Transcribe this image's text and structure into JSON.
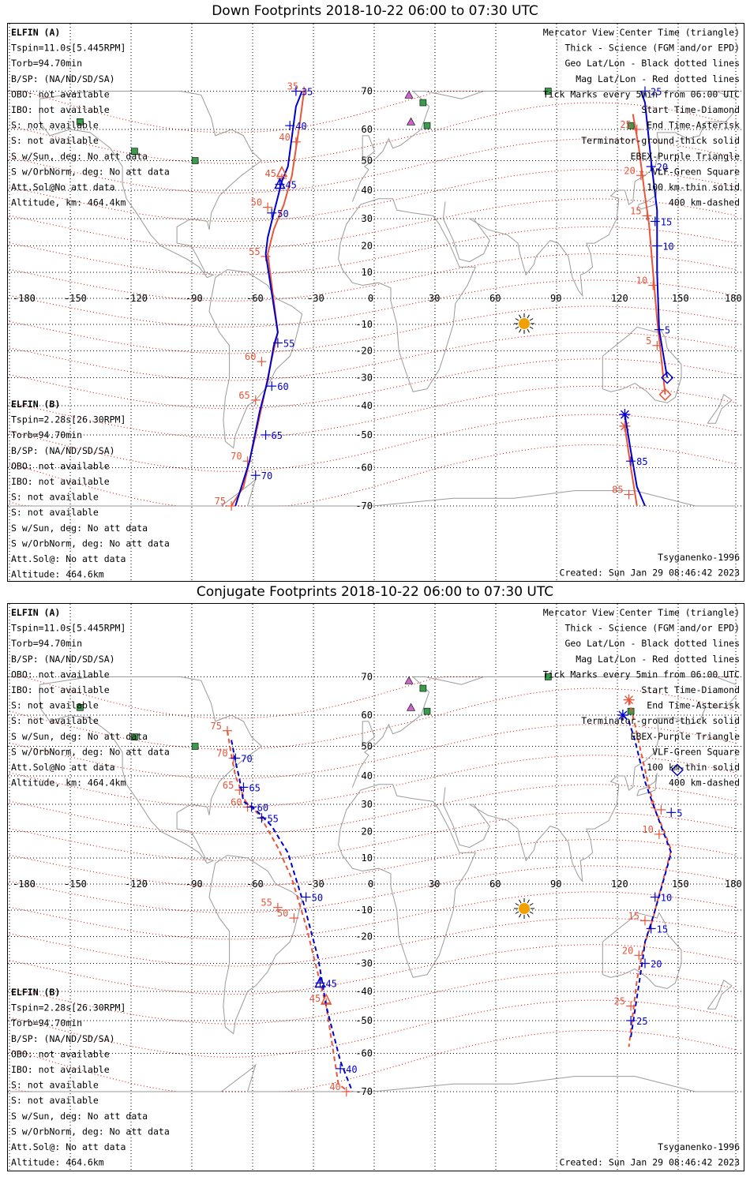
{
  "colors": {
    "elfin_a": "#0000cc",
    "elfin_b": "#e8553a",
    "geo_grid": "#000000",
    "mag_grid": "#dd0000",
    "magnetic_meridian": "#cc44cc",
    "coast": "#9a9a9a",
    "vlf_square": "#3a9b4a",
    "ebex_triangle": "#cc66cc",
    "sun": "#f0a000"
  },
  "icons": {
    "sun": "sun-icon",
    "vlf": "square-marker-icon",
    "ebex": "triangle-marker-icon"
  },
  "panels": [
    {
      "title": "Down Footprints 2018-10-22 06:00 to 07:30 UTC",
      "left_a": [
        "ELFIN (A)",
        "Tspin=11.0s[5.445RPM]",
        "Torb=94.70min",
        "B/SP: (NA/ND/SD/SA)",
        "OBO: not available",
        "IBO: not available",
        "S: not available",
        "S: not available",
        "S w/Sun, deg: No att data",
        "S w/OrbNorm, deg: No att data",
        "Att.Sol@No att data",
        "Altitude, km: 464.4km"
      ],
      "left_b": [
        "ELFIN (B)",
        "Tspin=2.28s[26.30RPM]",
        "Torb=94.70min",
        "B/SP: (NA/ND/SD/SA)",
        "OBO: not available",
        "IBO: not available",
        "S: not available",
        "S: not available",
        "S w/Sun, deg: No att data",
        "S w/OrbNorm, deg: No att data",
        "Att.Sol@: No att data",
        "Altitude: 464.6km"
      ],
      "right": [
        "Mercator View Center Time (triangle)",
        "Thick - Science (FGM and/or EPD)",
        "Geo Lat/Lon - Black dotted lines",
        "Mag Lat/Lon - Red dotted lines",
        "Tick Marks every 5min from 06:00 UTC",
        "Start Time-Diamond",
        "End Time-Asterisk",
        "Terminator-ground-thick solid",
        "EBEX-Purple Triangle",
        "VLF-Green Square",
        "100 km-thin solid",
        "400 km-dashed"
      ],
      "bottom_right": [
        "Tsyganenko-1996",
        "Created: Sun Jan 29 08:46:42 2023"
      ],
      "lon_labels": [
        "-180",
        "-150",
        "-120",
        "-90",
        "-60",
        "-30",
        "0",
        "30",
        "60",
        "90",
        "120",
        "150",
        "180"
      ],
      "lat_labels": [
        "70",
        "60",
        "50",
        "40",
        "30",
        "20",
        "10",
        "-10",
        "-20",
        "-30",
        "-40",
        "-50",
        "-60",
        "-70"
      ],
      "track_a_1": {
        "points": [
          [
            -35,
            78
          ],
          [
            -38,
            66
          ],
          [
            -42,
            48
          ],
          [
            -45,
            43
          ],
          [
            -49,
            32
          ],
          [
            -52,
            23
          ],
          [
            -53,
            17
          ],
          [
            -47,
            -13
          ],
          [
            -49,
            -18
          ],
          [
            -52,
            -31
          ],
          [
            -56,
            -42
          ],
          [
            -61,
            -58
          ],
          [
            -68,
            -74
          ]
        ],
        "ticks": [
          {
            "lon": -38,
            "lat": 73,
            "label": "35"
          },
          {
            "lon": -41,
            "lat": 61,
            "label": "40"
          },
          {
            "lon": -46,
            "lat": 42,
            "label": "45"
          },
          {
            "lon": -50,
            "lat": 32,
            "label": "50"
          },
          {
            "lon": -47,
            "lat": -17,
            "label": "55"
          },
          {
            "lon": -50,
            "lat": -33,
            "label": "60"
          },
          {
            "lon": -53,
            "lat": -50,
            "label": "65"
          },
          {
            "lon": -58,
            "lat": -62,
            "label": "70"
          }
        ]
      },
      "track_b_1": {
        "points": [
          [
            -34,
            77
          ],
          [
            -36,
            62
          ],
          [
            -40,
            45
          ],
          [
            -44,
            35
          ],
          [
            -49,
            26
          ],
          [
            -52,
            17
          ],
          [
            -47,
            -13
          ],
          [
            -50,
            -23
          ],
          [
            -54,
            -37
          ],
          [
            -58,
            -50
          ],
          [
            -64,
            -65
          ],
          [
            -70,
            -76
          ]
        ],
        "ticks": [
          {
            "lon": -34,
            "lat": 77,
            "label": "35"
          },
          {
            "lon": -38,
            "lat": 56,
            "label": "40"
          },
          {
            "lon": -45,
            "lat": 44,
            "label": "45"
          },
          {
            "lon": -52,
            "lat": 34,
            "label": "50"
          },
          {
            "lon": -53,
            "lat": 16,
            "label": "55"
          },
          {
            "lon": -55,
            "lat": -24,
            "label": "60"
          },
          {
            "lon": -58,
            "lat": -38,
            "label": "65"
          },
          {
            "lon": -62,
            "lat": -58,
            "label": "70"
          },
          {
            "lon": -70,
            "lat": -76,
            "label": "75"
          }
        ]
      },
      "track_a_2": {
        "points": [
          [
            133,
            77
          ],
          [
            135,
            67
          ],
          [
            138,
            50
          ],
          [
            141,
            33
          ],
          [
            141,
            10
          ],
          [
            142,
            -12
          ],
          [
            146,
            -30
          ]
        ],
        "ticks": [
          {
            "lon": 135,
            "lat": 70,
            "label": "25"
          },
          {
            "lon": 138,
            "lat": 48,
            "label": "20"
          },
          {
            "lon": 140,
            "lat": 29,
            "label": "15"
          },
          {
            "lon": 141,
            "lat": 20,
            "label": "10"
          },
          {
            "lon": 142,
            "lat": -12,
            "label": "5"
          }
        ],
        "start": {
          "lon": 146,
          "lat": -30
        }
      },
      "track_b_2": {
        "points": [
          [
            129,
            64
          ],
          [
            132,
            54
          ],
          [
            135,
            38
          ],
          [
            137,
            28
          ],
          [
            139,
            10
          ],
          [
            141,
            -8
          ],
          [
            145,
            -36
          ]
        ],
        "ticks": [
          {
            "lon": 131,
            "lat": 60,
            "label": "25"
          },
          {
            "lon": 133,
            "lat": 45,
            "label": "20"
          },
          {
            "lon": 136,
            "lat": 31,
            "label": "15"
          },
          {
            "lon": 139,
            "lat": 5,
            "label": "10"
          },
          {
            "lon": 141,
            "lat": -18,
            "label": "5"
          }
        ],
        "start": {
          "lon": 145,
          "lat": -36
        }
      },
      "track_a_3": {
        "points": [
          [
            125,
            -43
          ],
          [
            128,
            -55
          ],
          [
            131,
            -65
          ],
          [
            135,
            -75
          ]
        ],
        "ticks": [
          {
            "lon": 128,
            "lat": -58,
            "label": "85"
          }
        ],
        "end": {
          "lon": 125,
          "lat": -43
        }
      },
      "track_b_3": {
        "points": [
          [
            125,
            -47
          ],
          [
            128,
            -60
          ],
          [
            131,
            -70
          ]
        ],
        "ticks": [
          {
            "lon": 127,
            "lat": -67,
            "label": "85"
          }
        ],
        "end": {
          "lon": 125,
          "lat": -47
        }
      },
      "center_a": {
        "lon": -46,
        "lat": 42
      },
      "center_b": {
        "lon": -45,
        "lat": 46
      }
    },
    {
      "title": "Conjugate Footprints 2018-10-22 06:00 to 07:30 UTC",
      "left_a": [
        "ELFIN (A)",
        "Tspin=11.0s[5.445RPM]",
        "Torb=94.70min",
        "B/SP: (NA/ND/SD/SA)",
        "OBO: not available",
        "IBO: not available",
        "S: not available",
        "S: not available",
        "S w/Sun, deg: No att data",
        "S w/OrbNorm, deg: No att data",
        "Att.Sol@No att data",
        "Altitude, km: 464.4km"
      ],
      "left_b": [
        "ELFIN (B)",
        "Tspin=2.28s[26.30RPM]",
        "Torb=94.70min",
        "B/SP: (NA/ND/SD/SA)",
        "OBO: not available",
        "IBO: not available",
        "S: not available",
        "S: not available",
        "S w/Sun, deg: No att data",
        "S w/OrbNorm, deg: No att data",
        "Att.Sol@: No att data",
        "Altitude: 464.6km"
      ],
      "right": [
        "Mercator View Center Time (triangle)",
        "Thick - Science (FGM and/or EPD)",
        "Geo Lat/Lon - Black dotted lines",
        "Mag Lat/Lon - Red dotted lines",
        "Tick Marks every 5min from 06:00 UTC",
        "Start Time-Diamond",
        "End Time-Asterisk",
        "Terminator-ground-thick solid",
        "EBEX-Purple Triangle",
        "VLF-Green Square",
        "100 km-thin solid",
        "400 km-dashed"
      ],
      "bottom_right": [
        "Tsyganenko-1996",
        "Created: Sun Jan 29 08:46:42 2023"
      ],
      "lon_labels": [
        "-180",
        "-150",
        "-120",
        "-90",
        "-60",
        "-30",
        "0",
        "30",
        "60",
        "90",
        "120",
        "150",
        "180"
      ],
      "lat_labels": [
        "70",
        "60",
        "50",
        "40",
        "30",
        "20",
        "10",
        "-10",
        "-20",
        "-30",
        "-40",
        "-50",
        "-60",
        "-70"
      ],
      "track_a_1": {
        "points": [
          [
            -70,
            52
          ],
          [
            -68,
            45
          ],
          [
            -66,
            39
          ],
          [
            -64,
            31
          ],
          [
            -58,
            28
          ],
          [
            -50,
            22
          ],
          [
            -42,
            12
          ],
          [
            -34,
            -8
          ],
          [
            -27,
            -28
          ],
          [
            -23,
            -45
          ],
          [
            -16,
            -62
          ],
          [
            -10,
            -74
          ]
        ],
        "ticks": [
          {
            "lon": -68,
            "lat": 46,
            "label": "70"
          },
          {
            "lon": -64,
            "lat": 36,
            "label": "65"
          },
          {
            "lon": -60,
            "lat": 29,
            "label": "60"
          },
          {
            "lon": -55,
            "lat": 25,
            "label": "55"
          },
          {
            "lon": -33,
            "lat": -5,
            "label": "50"
          },
          {
            "lon": -26,
            "lat": -37,
            "label": "45"
          },
          {
            "lon": -16,
            "lat": -64,
            "label": "40"
          }
        ]
      },
      "track_b_1": {
        "points": [
          [
            -72,
            55
          ],
          [
            -70,
            47
          ],
          [
            -68,
            40
          ],
          [
            -63,
            31
          ],
          [
            -56,
            26
          ],
          [
            -47,
            14
          ],
          [
            -40,
            2
          ],
          [
            -33,
            -16
          ],
          [
            -27,
            -34
          ],
          [
            -23,
            -45
          ],
          [
            -17,
            -68
          ],
          [
            -12,
            -78
          ]
        ],
        "ticks": [
          {
            "lon": -72,
            "lat": 55,
            "label": "75"
          },
          {
            "lon": -69,
            "lat": 46,
            "label": "70"
          },
          {
            "lon": -66,
            "lat": 35,
            "label": "65"
          },
          {
            "lon": -62,
            "lat": 29,
            "label": "60"
          },
          {
            "lon": -47,
            "lat": -9,
            "label": "55"
          },
          {
            "lon": -39,
            "lat": -13,
            "label": "50"
          },
          {
            "lon": -23,
            "lat": -44,
            "label": "45"
          },
          {
            "lon": -13,
            "lat": -72,
            "label": "40"
          }
        ]
      },
      "track_a_2": {
        "points": [
          [
            124,
            60
          ],
          [
            127,
            58
          ],
          [
            130,
            52
          ],
          [
            135,
            38
          ],
          [
            139,
            30
          ],
          [
            144,
            20
          ],
          [
            148,
            12
          ],
          [
            140,
            -10
          ],
          [
            138,
            -15
          ],
          [
            135,
            -22
          ],
          [
            134,
            -28
          ],
          [
            128,
            -55
          ]
        ],
        "ticks": [
          {
            "lon": 148,
            "lat": 27,
            "label": "5"
          },
          {
            "lon": 140,
            "lat": -5,
            "label": "10"
          },
          {
            "lon": 138,
            "lat": -17,
            "label": "15"
          },
          {
            "lon": 135,
            "lat": -30,
            "label": "20"
          },
          {
            "lon": 128,
            "lat": -50,
            "label": "25"
          }
        ],
        "start": {
          "lon": 151,
          "lat": 42
        },
        "end": {
          "lon": 124,
          "lat": 60
        }
      },
      "track_b_2": {
        "points": [
          [
            127,
            64
          ],
          [
            130,
            57
          ],
          [
            133,
            48
          ],
          [
            137,
            36
          ],
          [
            140,
            28
          ],
          [
            144,
            21
          ],
          [
            148,
            13
          ],
          [
            141,
            -7
          ],
          [
            139,
            -13
          ],
          [
            134,
            -25
          ],
          [
            131,
            -36
          ],
          [
            127,
            -58
          ]
        ],
        "ticks": [
          {
            "lon": 143,
            "lat": 28,
            "label": "5"
          },
          {
            "lon": 142,
            "lat": 19,
            "label": "10"
          },
          {
            "lon": 135,
            "lat": -14,
            "label": "15"
          },
          {
            "lon": 132,
            "lat": -27,
            "label": "20"
          },
          {
            "lon": 128,
            "lat": -45,
            "label": "25"
          }
        ],
        "end": {
          "lon": 127,
          "lat": 64
        }
      },
      "center_a": {
        "lon": -26,
        "lat": -37
      },
      "center_b": {
        "lon": -23,
        "lat": -43
      }
    }
  ]
}
